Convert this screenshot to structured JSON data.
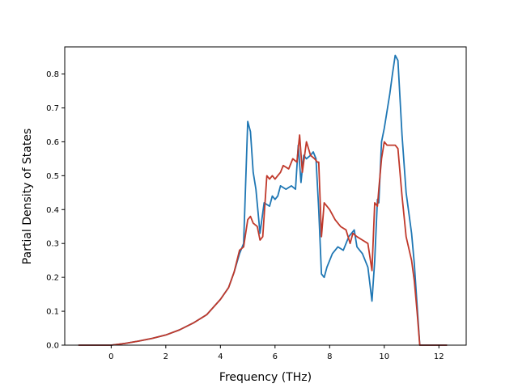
{
  "chart_data": {
    "type": "line",
    "title": "",
    "xlabel": "Frequency (THz)",
    "ylabel": "Partial Density of States",
    "xlim": [
      -1.7,
      13.0
    ],
    "ylim": [
      0.0,
      0.88
    ],
    "xticks": [
      0,
      2,
      4,
      6,
      8,
      10,
      12
    ],
    "xtick_labels": [
      "0",
      "2",
      "4",
      "6",
      "8",
      "10",
      "12"
    ],
    "yticks": [
      0.0,
      0.1,
      0.2,
      0.3,
      0.4,
      0.5,
      0.6,
      0.7,
      0.8
    ],
    "ytick_labels": [
      "0.0",
      "0.1",
      "0.2",
      "0.3",
      "0.4",
      "0.5",
      "0.6",
      "0.7",
      "0.8"
    ],
    "grid": false,
    "legend": "none",
    "series": [
      {
        "color": "#1f77b4",
        "x": [
          -1.2,
          0.0,
          0.5,
          1.0,
          1.5,
          2.0,
          2.5,
          3.0,
          3.5,
          4.0,
          4.3,
          4.5,
          4.7,
          4.85,
          5.0,
          5.1,
          5.2,
          5.3,
          5.45,
          5.6,
          5.8,
          5.9,
          6.0,
          6.1,
          6.2,
          6.4,
          6.6,
          6.75,
          6.85,
          6.95,
          7.05,
          7.15,
          7.3,
          7.4,
          7.5,
          7.6,
          7.7,
          7.8,
          7.9,
          8.1,
          8.3,
          8.5,
          8.6,
          8.7,
          8.9,
          9.0,
          9.2,
          9.4,
          9.55,
          9.65,
          9.75,
          9.8,
          9.9,
          10.0,
          10.2,
          10.3,
          10.4,
          10.5,
          10.65,
          10.8,
          11.0,
          11.1,
          11.2,
          11.3,
          11.6,
          12.3
        ],
        "y": [
          0.0,
          0.0,
          0.005,
          0.012,
          0.02,
          0.03,
          0.045,
          0.065,
          0.09,
          0.135,
          0.17,
          0.215,
          0.27,
          0.3,
          0.66,
          0.63,
          0.51,
          0.46,
          0.33,
          0.42,
          0.41,
          0.44,
          0.43,
          0.44,
          0.47,
          0.46,
          0.47,
          0.46,
          0.59,
          0.48,
          0.56,
          0.55,
          0.56,
          0.57,
          0.55,
          0.4,
          0.21,
          0.2,
          0.23,
          0.27,
          0.29,
          0.28,
          0.3,
          0.32,
          0.34,
          0.29,
          0.27,
          0.23,
          0.13,
          0.25,
          0.43,
          0.42,
          0.6,
          0.64,
          0.74,
          0.8,
          0.855,
          0.84,
          0.62,
          0.45,
          0.33,
          0.24,
          0.12,
          0.0,
          0.0,
          0.0
        ]
      },
      {
        "color": "#c0392b",
        "x": [
          -1.2,
          0.0,
          0.5,
          1.0,
          1.5,
          2.0,
          2.5,
          3.0,
          3.5,
          4.0,
          4.3,
          4.5,
          4.7,
          4.85,
          5.0,
          5.1,
          5.2,
          5.35,
          5.45,
          5.55,
          5.7,
          5.8,
          5.9,
          6.0,
          6.1,
          6.2,
          6.3,
          6.5,
          6.65,
          6.8,
          6.9,
          7.0,
          7.15,
          7.3,
          7.45,
          7.55,
          7.6,
          7.7,
          7.8,
          8.0,
          8.2,
          8.4,
          8.6,
          8.75,
          8.85,
          9.0,
          9.2,
          9.4,
          9.55,
          9.65,
          9.75,
          9.8,
          9.9,
          10.0,
          10.1,
          10.3,
          10.4,
          10.5,
          10.65,
          10.8,
          11.0,
          11.1,
          11.2,
          11.3,
          11.6,
          12.3
        ],
        "y": [
          0.0,
          0.0,
          0.005,
          0.012,
          0.02,
          0.03,
          0.045,
          0.065,
          0.09,
          0.135,
          0.17,
          0.215,
          0.28,
          0.29,
          0.37,
          0.38,
          0.36,
          0.35,
          0.31,
          0.32,
          0.5,
          0.49,
          0.5,
          0.49,
          0.5,
          0.51,
          0.53,
          0.52,
          0.55,
          0.54,
          0.62,
          0.51,
          0.6,
          0.56,
          0.55,
          0.54,
          0.54,
          0.32,
          0.42,
          0.4,
          0.37,
          0.35,
          0.34,
          0.3,
          0.33,
          0.32,
          0.31,
          0.3,
          0.22,
          0.42,
          0.41,
          0.46,
          0.55,
          0.6,
          0.59,
          0.59,
          0.59,
          0.58,
          0.44,
          0.32,
          0.25,
          0.19,
          0.1,
          0.0,
          0.0,
          0.0
        ]
      }
    ]
  }
}
